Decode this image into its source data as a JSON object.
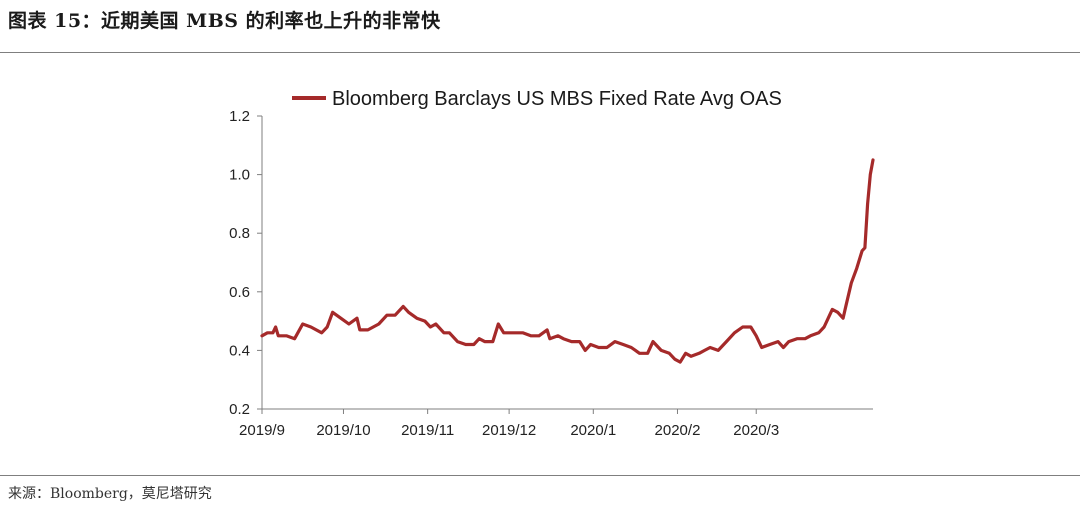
{
  "figure": {
    "title": "图表 15：近期美国 MBS 的利率也上升的非常快",
    "source": "来源：Bloomberg，莫尼塔研究"
  },
  "chart_data": {
    "type": "line",
    "title": "",
    "xlabel": "",
    "ylabel": "",
    "ylim": [
      0.2,
      1.2
    ],
    "yticks": [
      "0.2",
      "0.4",
      "0.6",
      "0.8",
      "1.0",
      "1.2"
    ],
    "xticks": [
      "2019/9",
      "2019/10",
      "2019/11",
      "2019/12",
      "2020/1",
      "2020/2",
      "2020/3"
    ],
    "grid": false,
    "legend_position": "top",
    "color": "#a52a2a",
    "series": [
      {
        "name": "Bloomberg Barclays US MBS Fixed Rate Avg OAS",
        "points": [
          [
            "2019-09-01",
            0.45
          ],
          [
            "2019-09-03",
            0.46
          ],
          [
            "2019-09-05",
            0.46
          ],
          [
            "2019-09-06",
            0.48
          ],
          [
            "2019-09-07",
            0.45
          ],
          [
            "2019-09-10",
            0.45
          ],
          [
            "2019-09-13",
            0.44
          ],
          [
            "2019-09-16",
            0.49
          ],
          [
            "2019-09-19",
            0.48
          ],
          [
            "2019-09-23",
            0.46
          ],
          [
            "2019-09-25",
            0.48
          ],
          [
            "2019-09-27",
            0.53
          ],
          [
            "2019-09-30",
            0.51
          ],
          [
            "2019-10-03",
            0.49
          ],
          [
            "2019-10-06",
            0.51
          ],
          [
            "2019-10-07",
            0.47
          ],
          [
            "2019-10-10",
            0.47
          ],
          [
            "2019-10-14",
            0.49
          ],
          [
            "2019-10-17",
            0.52
          ],
          [
            "2019-10-20",
            0.52
          ],
          [
            "2019-10-23",
            0.55
          ],
          [
            "2019-10-25",
            0.53
          ],
          [
            "2019-10-28",
            0.51
          ],
          [
            "2019-10-31",
            0.5
          ],
          [
            "2019-11-02",
            0.48
          ],
          [
            "2019-11-04",
            0.49
          ],
          [
            "2019-11-07",
            0.46
          ],
          [
            "2019-11-09",
            0.46
          ],
          [
            "2019-11-12",
            0.43
          ],
          [
            "2019-11-15",
            0.42
          ],
          [
            "2019-11-18",
            0.42
          ],
          [
            "2019-11-20",
            0.44
          ],
          [
            "2019-11-22",
            0.43
          ],
          [
            "2019-11-25",
            0.43
          ],
          [
            "2019-11-27",
            0.49
          ],
          [
            "2019-11-29",
            0.46
          ],
          [
            "2019-12-03",
            0.46
          ],
          [
            "2019-12-06",
            0.46
          ],
          [
            "2019-12-09",
            0.45
          ],
          [
            "2019-12-12",
            0.45
          ],
          [
            "2019-12-15",
            0.47
          ],
          [
            "2019-12-16",
            0.44
          ],
          [
            "2019-12-19",
            0.45
          ],
          [
            "2019-12-21",
            0.44
          ],
          [
            "2019-12-24",
            0.43
          ],
          [
            "2019-12-27",
            0.43
          ],
          [
            "2019-12-29",
            0.4
          ],
          [
            "2019-12-31",
            0.42
          ],
          [
            "2020-01-03",
            0.41
          ],
          [
            "2020-01-06",
            0.41
          ],
          [
            "2020-01-09",
            0.43
          ],
          [
            "2020-01-12",
            0.42
          ],
          [
            "2020-01-15",
            0.41
          ],
          [
            "2020-01-18",
            0.39
          ],
          [
            "2020-01-21",
            0.39
          ],
          [
            "2020-01-23",
            0.43
          ],
          [
            "2020-01-26",
            0.4
          ],
          [
            "2020-01-29",
            0.39
          ],
          [
            "2020-01-31",
            0.37
          ],
          [
            "2020-02-02",
            0.36
          ],
          [
            "2020-02-04",
            0.39
          ],
          [
            "2020-02-06",
            0.38
          ],
          [
            "2020-02-09",
            0.39
          ],
          [
            "2020-02-11",
            0.4
          ],
          [
            "2020-02-13",
            0.41
          ],
          [
            "2020-02-16",
            0.4
          ],
          [
            "2020-02-19",
            0.43
          ],
          [
            "2020-02-22",
            0.46
          ],
          [
            "2020-02-25",
            0.48
          ],
          [
            "2020-02-28",
            0.48
          ],
          [
            "2020-03-01",
            0.45
          ],
          [
            "2020-03-03",
            0.41
          ],
          [
            "2020-03-06",
            0.42
          ],
          [
            "2020-03-09",
            0.43
          ],
          [
            "2020-03-11",
            0.41
          ],
          [
            "2020-03-13",
            0.43
          ],
          [
            "2020-03-16",
            0.44
          ],
          [
            "2020-03-19",
            0.44
          ],
          [
            "2020-03-21",
            0.45
          ],
          [
            "2020-03-24",
            0.46
          ],
          [
            "2020-03-26",
            0.48
          ],
          [
            "2020-03-28",
            0.52
          ],
          [
            "2020-03-29",
            0.54
          ],
          [
            "2020-03-31",
            0.53
          ],
          [
            "2020-04-02",
            0.51
          ],
          [
            "2020-04-03",
            0.55
          ],
          [
            "2020-04-05",
            0.63
          ],
          [
            "2020-04-07",
            0.68
          ],
          [
            "2020-04-09",
            0.74
          ],
          [
            "2020-04-10",
            0.75
          ],
          [
            "2020-04-11",
            0.9
          ],
          [
            "2020-04-12",
            1.0
          ],
          [
            "2020-04-13",
            1.05
          ]
        ]
      }
    ]
  }
}
